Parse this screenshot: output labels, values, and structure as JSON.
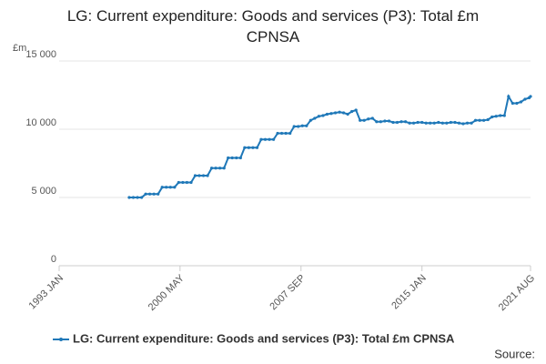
{
  "chart_data": {
    "type": "line",
    "title": "LG: Current expenditure: Goods and services (P3): Total £m CPNSA",
    "y_unit_label": "£m",
    "source": "Source:",
    "xlim": [
      "1993 JAN",
      "2021 AUG"
    ],
    "xticks": [
      "1993 JAN",
      "2000 MAY",
      "2007 SEP",
      "2015 JAN",
      "2021 AUG"
    ],
    "ylim": [
      0,
      15000
    ],
    "yticks": [
      {
        "value": 0,
        "label": "0"
      },
      {
        "value": 5000,
        "label": "5 000"
      },
      {
        "value": 10000,
        "label": "10 000"
      },
      {
        "value": 15000,
        "label": "15 000"
      }
    ],
    "grid": true,
    "x": [
      "1997 APR",
      "1997 JUL",
      "1997 OCT",
      "1998 JAN",
      "1998 APR",
      "1998 JUL",
      "1998 OCT",
      "1999 JAN",
      "1999 APR",
      "1999 JUL",
      "1999 OCT",
      "2000 JAN",
      "2000 APR",
      "2000 JUL",
      "2000 OCT",
      "2001 JAN",
      "2001 APR",
      "2001 JUL",
      "2001 OCT",
      "2002 JAN",
      "2002 APR",
      "2002 JUL",
      "2002 OCT",
      "2003 JAN",
      "2003 APR",
      "2003 JUL",
      "2003 OCT",
      "2004 JAN",
      "2004 APR",
      "2004 JUL",
      "2004 OCT",
      "2005 JAN",
      "2005 APR",
      "2005 JUL",
      "2005 OCT",
      "2006 JAN",
      "2006 APR",
      "2006 JUL",
      "2006 OCT",
      "2007 JAN",
      "2007 APR",
      "2007 JUL",
      "2007 OCT",
      "2008 JAN",
      "2008 APR",
      "2008 JUL",
      "2008 OCT",
      "2009 JAN",
      "2009 APR",
      "2009 JUL",
      "2009 OCT",
      "2010 JAN",
      "2010 APR",
      "2010 JUL",
      "2010 OCT",
      "2011 JAN",
      "2011 APR",
      "2011 JUL",
      "2011 OCT",
      "2012 JAN",
      "2012 APR",
      "2012 JUL",
      "2012 OCT",
      "2013 JAN",
      "2013 APR",
      "2013 JUL",
      "2013 OCT",
      "2014 JAN",
      "2014 APR",
      "2014 JUL",
      "2014 OCT",
      "2015 JAN",
      "2015 APR",
      "2015 JUL",
      "2015 OCT",
      "2016 JAN",
      "2016 APR",
      "2016 JUL",
      "2016 OCT",
      "2017 JAN",
      "2017 APR",
      "2017 JUL",
      "2017 OCT",
      "2018 JAN",
      "2018 APR",
      "2018 JUL",
      "2018 OCT",
      "2019 JAN",
      "2019 APR",
      "2019 JUL",
      "2019 OCT",
      "2020 JAN",
      "2020 APR",
      "2020 JUL",
      "2020 OCT",
      "2021 JAN",
      "2021 APR",
      "2021 JUL",
      "2021 AUG"
    ],
    "series": [
      {
        "name": "LG: Current expenditure: Goods and services (P3): Total £m CPNSA",
        "color": "#1f78b8",
        "values": [
          5000,
          5000,
          5000,
          5000,
          5250,
          5250,
          5250,
          5250,
          5750,
          5750,
          5750,
          5750,
          6100,
          6100,
          6100,
          6100,
          6600,
          6600,
          6600,
          6600,
          7150,
          7150,
          7150,
          7150,
          7900,
          7900,
          7900,
          7900,
          8650,
          8650,
          8650,
          8650,
          9250,
          9250,
          9250,
          9250,
          9700,
          9700,
          9700,
          9700,
          10200,
          10200,
          10250,
          10250,
          10650,
          10800,
          10950,
          11000,
          11100,
          11150,
          11200,
          11250,
          11200,
          11100,
          11300,
          11400,
          10650,
          10650,
          10750,
          10800,
          10550,
          10550,
          10600,
          10600,
          10500,
          10500,
          10550,
          10550,
          10450,
          10450,
          10500,
          10500,
          10450,
          10450,
          10450,
          10500,
          10450,
          10450,
          10500,
          10500,
          10450,
          10400,
          10450,
          10450,
          10650,
          10650,
          10650,
          10700,
          10900,
          10950,
          11000,
          11000,
          12400,
          11900,
          11900,
          12000,
          12200,
          12300,
          12400
        ]
      }
    ]
  }
}
